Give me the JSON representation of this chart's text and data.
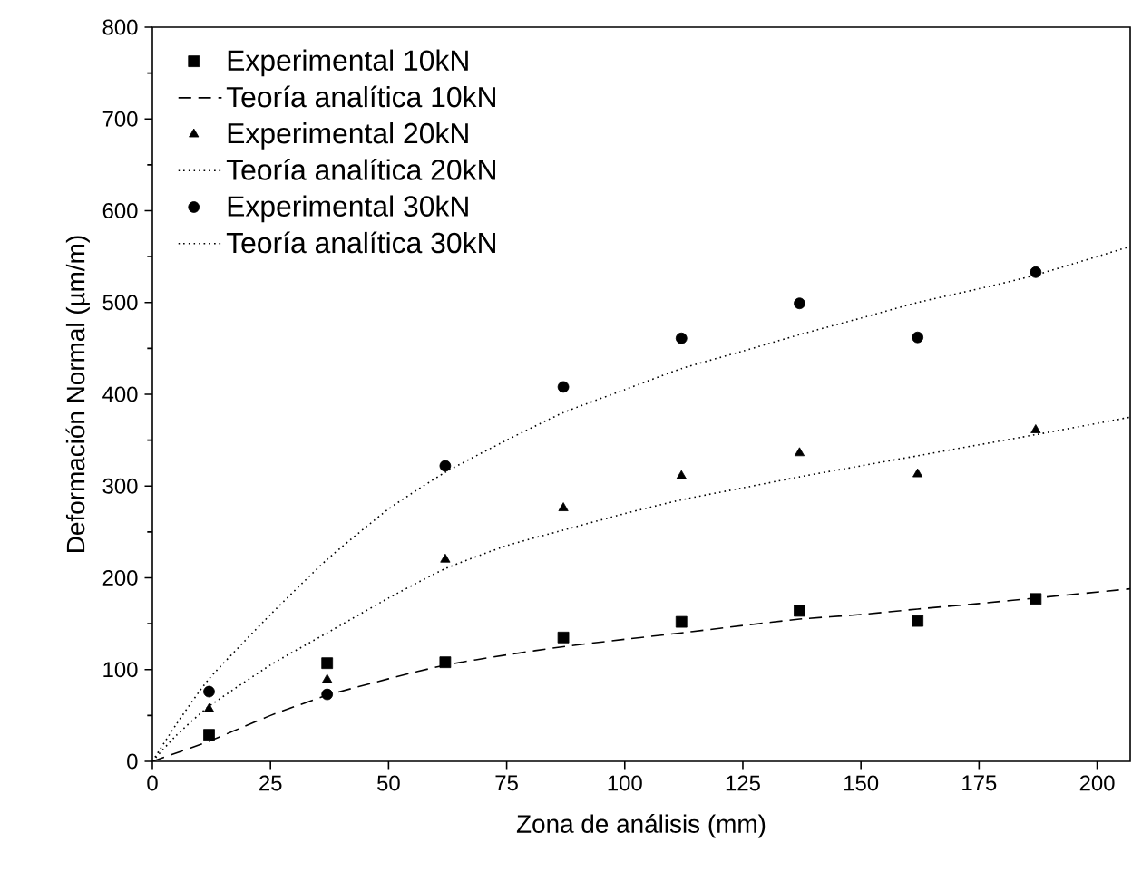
{
  "chart_data": {
    "type": "scatter",
    "xlabel": "Zona de análisis (mm)",
    "ylabel": "Deformación Normal (µm/m)",
    "xlim": [
      0,
      207
    ],
    "ylim": [
      0,
      800
    ],
    "xticks": [
      0,
      25,
      50,
      75,
      100,
      125,
      150,
      175,
      200
    ],
    "yticks": [
      0,
      100,
      200,
      300,
      400,
      500,
      600,
      700,
      800
    ],
    "grid": false,
    "legend": "top left",
    "series": [
      {
        "name": "Experimental 10kN",
        "marker": "square",
        "color": "#000000",
        "x": [
          12,
          37,
          62,
          87,
          112,
          137,
          162,
          187
        ],
        "values": [
          29,
          107,
          108,
          135,
          152,
          164,
          153,
          177
        ]
      },
      {
        "name": "Teoría analítica 10kN",
        "type": "line",
        "line_style": "dashed",
        "marker": "none",
        "color": "#000000",
        "x": [
          0,
          12,
          25,
          37,
          50,
          62,
          75,
          87,
          100,
          112,
          125,
          137,
          150,
          162,
          175,
          187,
          207
        ],
        "values": [
          0,
          22,
          50,
          72,
          90,
          105,
          116,
          125,
          133,
          140,
          148,
          155,
          160,
          166,
          172,
          178,
          188
        ]
      },
      {
        "name": "Experimental 20kN",
        "marker": "triangle",
        "color": "#000000",
        "x": [
          12,
          37,
          62,
          87,
          112,
          137,
          162,
          187
        ],
        "values": [
          57,
          89,
          220,
          276,
          311,
          336,
          313,
          361
        ]
      },
      {
        "name": "Teoría analítica 20kN",
        "type": "line",
        "line_style": "dotted",
        "marker": "none",
        "color": "#000000",
        "x": [
          0,
          5,
          12,
          25,
          37,
          50,
          62,
          75,
          87,
          100,
          112,
          125,
          137,
          150,
          162,
          175,
          187,
          207
        ],
        "values": [
          0,
          28,
          60,
          105,
          140,
          178,
          210,
          235,
          252,
          270,
          285,
          298,
          310,
          322,
          333,
          345,
          356,
          375
        ]
      },
      {
        "name": "Experimental 30kN",
        "marker": "circle",
        "color": "#000000",
        "x": [
          12,
          37,
          62,
          87,
          112,
          137,
          162,
          187
        ],
        "values": [
          76,
          73,
          322,
          408,
          461,
          499,
          462,
          533
        ]
      },
      {
        "name": "Teoría analítica 30kN",
        "type": "line",
        "line_style": "dotted",
        "marker": "none",
        "color": "#000000",
        "x": [
          0,
          5,
          12,
          25,
          37,
          50,
          62,
          75,
          87,
          100,
          112,
          125,
          137,
          150,
          162,
          175,
          187,
          207
        ],
        "values": [
          0,
          40,
          90,
          160,
          220,
          275,
          315,
          350,
          380,
          405,
          428,
          447,
          465,
          483,
          500,
          515,
          530,
          561
        ]
      }
    ]
  }
}
